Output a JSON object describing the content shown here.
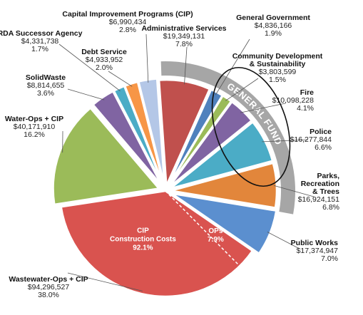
{
  "chart_data": {
    "type": "pie",
    "slices": [
      {
        "key": "admin",
        "name": "Administrative Services",
        "value": "$19,349,131",
        "pct": 7.8,
        "pct_label": "7.8%",
        "color": "#c0504d"
      },
      {
        "key": "gengov",
        "name": "General Government",
        "value": "$4,836,166",
        "pct": 1.9,
        "pct_label": "1.9%",
        "color": "#4f81bd"
      },
      {
        "key": "commdev",
        "name_lines": [
          "Community Development",
          "& Sustainability"
        ],
        "value": "$3,803,599",
        "pct": 1.5,
        "pct_label": "1.5%",
        "color": "#9bbb59"
      },
      {
        "key": "fire",
        "name": "Fire",
        "value": "$10,098,228",
        "pct": 4.1,
        "pct_label": "4.1%",
        "color": "#8064a2"
      },
      {
        "key": "police",
        "name": "Police",
        "value": "$16,277,844",
        "pct": 6.6,
        "pct_label": "6.6%",
        "color": "#4bacc6"
      },
      {
        "key": "parks",
        "name_lines": [
          "Parks,",
          "Recreation",
          "& Trees"
        ],
        "value": "$16,924,151",
        "pct": 6.8,
        "pct_label": "6.8%",
        "color": "#e2863b"
      },
      {
        "key": "publicworks",
        "name": "Public Works",
        "value": "$17,374,947",
        "pct": 7.0,
        "pct_label": "7.0%",
        "color": "#5b8fcf"
      },
      {
        "key": "wastewater",
        "name": "Wastewater-Ops + CIP",
        "value": "$94,296,527",
        "pct": 38.0,
        "pct_label": "38.0%",
        "color": "#d9534f",
        "sub": [
          {
            "name": "OPs",
            "pct": 7.9,
            "pct_label": "7.9%"
          },
          {
            "name_lines": [
              "CIP",
              "Construction Costs"
            ],
            "pct": 92.1,
            "pct_label": "92.1%"
          }
        ]
      },
      {
        "key": "water",
        "name": "Water-Ops + CIP",
        "value": "$40,171,910",
        "pct": 16.2,
        "pct_label": "16.2%",
        "color": "#9bbb59"
      },
      {
        "key": "solidwaste",
        "name": "SolidWaste",
        "value": "$8,814,655",
        "pct": 3.6,
        "pct_label": "3.6%",
        "color": "#8064a2"
      },
      {
        "key": "rda",
        "name": "RDA Successor Agency",
        "value": "$4,331,738",
        "pct": 1.7,
        "pct_label": "1.7%",
        "color": "#4bacc6"
      },
      {
        "key": "debt",
        "name": "Debt Service",
        "value": "$4,933,952",
        "pct": 2.0,
        "pct_label": "2.0%",
        "color": "#f79646"
      },
      {
        "key": "cip",
        "name": "Capital Improvement Programs (CIP)",
        "value": "$6,990,434",
        "pct": 2.8,
        "pct_label": "2.8%",
        "color": "#b4c7e7"
      }
    ],
    "group": {
      "label": "GENERAL FUND",
      "members": [
        "admin",
        "gengov",
        "commdev",
        "fire",
        "police",
        "parks"
      ],
      "color": "#a6a6a6"
    },
    "annotation": "hand-drawn ellipse around Community Development, Fire and Police"
  }
}
